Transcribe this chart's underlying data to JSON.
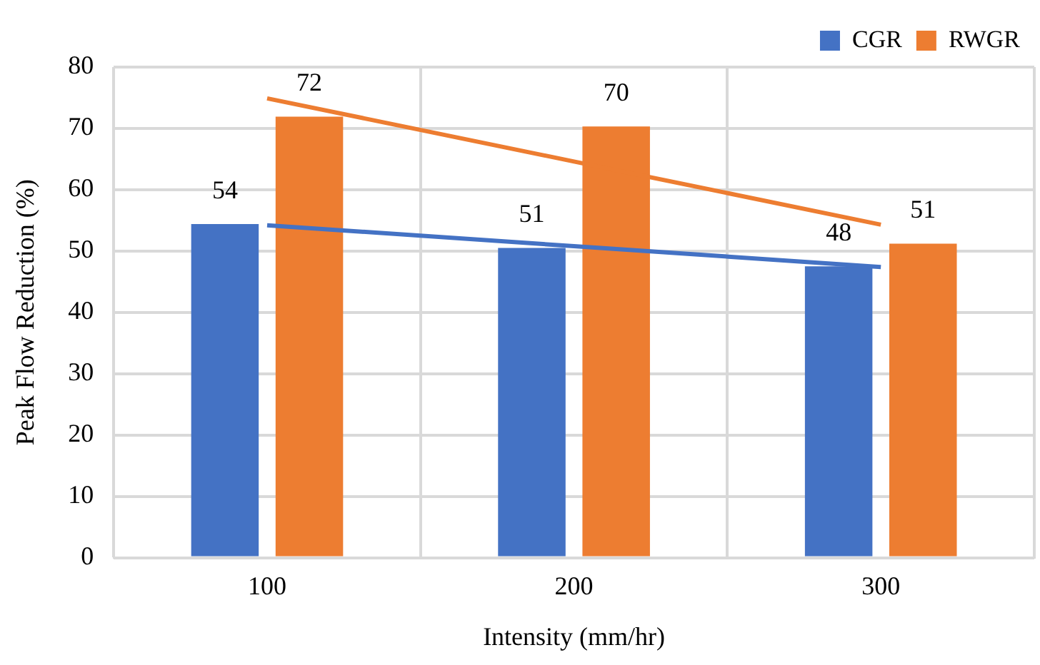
{
  "chart_data": {
    "type": "bar",
    "xlabel": "Intensity (mm/hr)",
    "ylabel": "Peak Flow Reduction (%)",
    "categories": [
      "100",
      "200",
      "300"
    ],
    "series": [
      {
        "name": "CGR",
        "color": "#4472c4",
        "values": [
          54.4,
          50.5,
          47.5
        ],
        "value_labels": [
          "54",
          "51",
          "48"
        ]
      },
      {
        "name": "RWGR",
        "color": "#ed7d31",
        "values": [
          71.9,
          70.3,
          51.2
        ],
        "value_labels": [
          "72",
          "70",
          "51"
        ]
      },
      {
        "type": "line",
        "color": "#4472c4",
        "x": [
          "100",
          "200",
          "300"
        ],
        "values": [
          54.2,
          50.8,
          47.4
        ]
      },
      {
        "type": "line",
        "color": "#ed7d31",
        "x": [
          "100",
          "200",
          "300"
        ],
        "values": [
          74.9,
          64.6,
          54.3
        ]
      }
    ],
    "ylim": [
      0,
      80
    ],
    "yticks": [
      0,
      10,
      20,
      30,
      40,
      50,
      60,
      70,
      80
    ],
    "grid": true,
    "legend": "top right",
    "marker": "none"
  }
}
